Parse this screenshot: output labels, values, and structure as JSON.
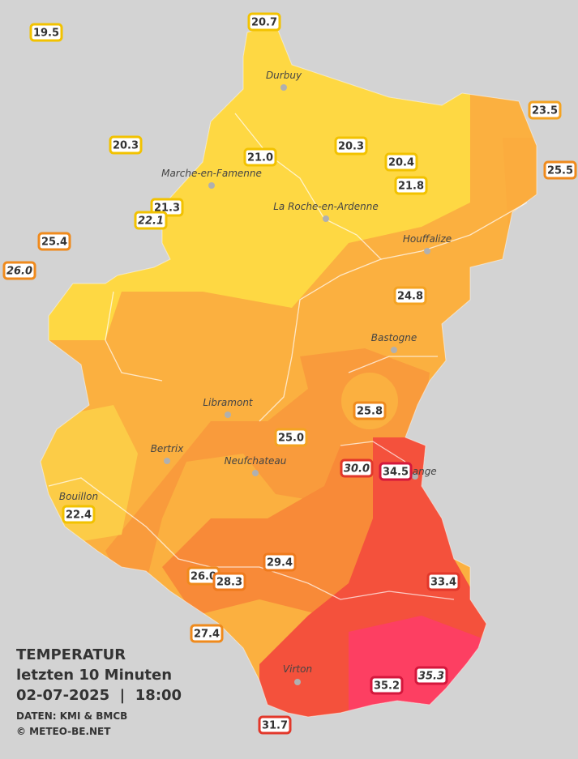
{
  "legend": {
    "title": "TEMPERATUR",
    "subtitle": "letzten 10 Minuten",
    "datetime": "02-07-2025  |  18:00",
    "source": "DATEN: KMI & BMCB",
    "copyright": "© METEO-BE.NET"
  },
  "cities": [
    "Durbuy",
    "Marche-en-Famenne",
    "La Roche-en-Ardenne",
    "Houffalize",
    "Bastogne",
    "Libramont",
    "Bertrix",
    "Neufchateau",
    "Bouillon",
    "Virton",
    "Aubange"
  ],
  "stations": [
    {
      "text": "19.5",
      "border": "#f2c200",
      "italic": false
    },
    {
      "text": "20.7",
      "border": "#f2c200",
      "italic": false
    },
    {
      "text": "23.5",
      "border": "#f4a322",
      "italic": false
    },
    {
      "text": "20.3",
      "border": "#f2c200",
      "italic": false
    },
    {
      "text": "21.0",
      "border": "#f2c200",
      "italic": false
    },
    {
      "text": "20.3",
      "border": "#f2c200",
      "italic": false
    },
    {
      "text": "20.4",
      "border": "#f2c200",
      "italic": false
    },
    {
      "text": "21.8",
      "border": "#f2c200",
      "italic": false
    },
    {
      "text": "25.5",
      "border": "#ef8a1c",
      "italic": false
    },
    {
      "text": "21.3",
      "border": "#f2c200",
      "italic": false
    },
    {
      "text": "22.1",
      "border": "#f2c200",
      "italic": true
    },
    {
      "text": "25.4",
      "border": "#ef8a1c",
      "italic": false
    },
    {
      "text": "26.0",
      "border": "#ef8a1c",
      "italic": true
    },
    {
      "text": "24.8",
      "border": "#f4a322",
      "italic": false
    },
    {
      "text": "25.8",
      "border": "#ef8a1c",
      "italic": false
    },
    {
      "text": "25.0",
      "border": "#f4a322",
      "italic": false
    },
    {
      "text": "30.0",
      "border": "#e2372a",
      "italic": true
    },
    {
      "text": "34.5",
      "border": "#d4173c",
      "italic": false
    },
    {
      "text": "22.4",
      "border": "#f2c200",
      "italic": false
    },
    {
      "text": "29.4",
      "border": "#ef7a1c",
      "italic": false
    },
    {
      "text": "26.0",
      "border": "#ef8a1c",
      "italic": false
    },
    {
      "text": "28.3",
      "border": "#ef7a1c",
      "italic": false
    },
    {
      "text": "33.4",
      "border": "#e2372a",
      "italic": false
    },
    {
      "text": "27.4",
      "border": "#ef8a1c",
      "italic": false
    },
    {
      "text": "35.2",
      "border": "#d4173c",
      "italic": false
    },
    {
      "text": "35.3",
      "border": "#d4173c",
      "italic": true
    },
    {
      "text": "31.7",
      "border": "#e2372a",
      "italic": false
    }
  ]
}
